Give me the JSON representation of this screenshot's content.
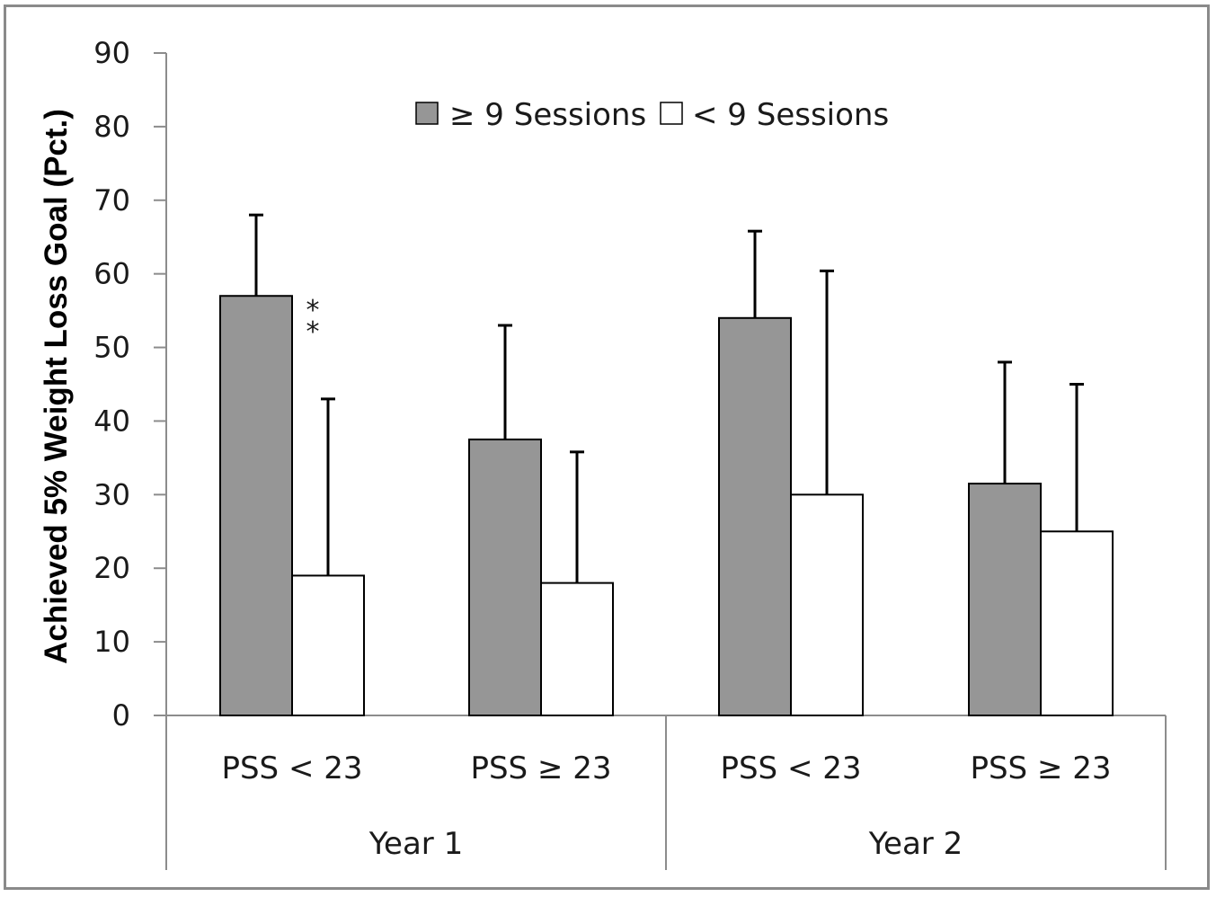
{
  "chart_data": {
    "type": "bar",
    "ylabel": "Achieved 5% Weight Loss Goal (Pct.)",
    "ylim": [
      0,
      90
    ],
    "yticks": [
      "0",
      "10",
      "20",
      "30",
      "40",
      "50",
      "60",
      "70",
      "80",
      "90"
    ],
    "legend_position": "top-center",
    "groups": [
      {
        "label": "Year 1",
        "categories": [
          "PSS < 23",
          "PSS ≥ 23"
        ]
      },
      {
        "label": "Year 2",
        "categories": [
          "PSS < 23",
          "PSS ≥ 23"
        ]
      }
    ],
    "series": [
      {
        "name": "≥ 9 Sessions",
        "color": "#969696",
        "values": [
          57,
          37.5,
          54,
          31.5
        ],
        "error_upper": [
          68,
          53,
          65.8,
          48
        ]
      },
      {
        "name": "< 9 Sessions",
        "color": "#ffffff",
        "values": [
          19,
          18,
          30,
          25
        ],
        "error_upper": [
          43,
          35.8,
          60.4,
          45
        ]
      }
    ],
    "annotations": [
      {
        "text": "* *",
        "category_index": 0
      }
    ]
  }
}
